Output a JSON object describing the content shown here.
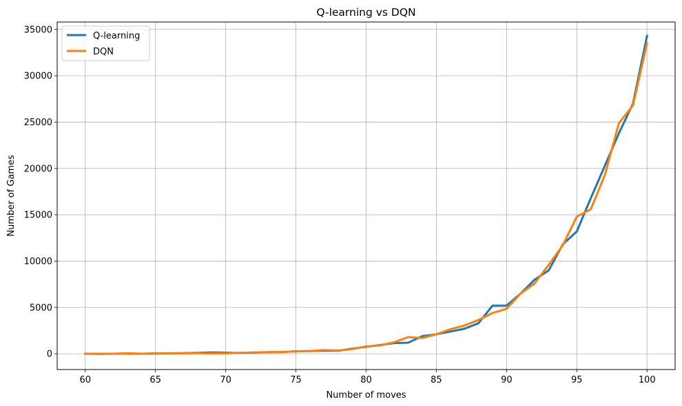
{
  "chart_data": {
    "type": "line",
    "title": "Q-learning vs DQN",
    "xlabel": "Number of moves",
    "ylabel": "Number of Games",
    "xlim": [
      58,
      102
    ],
    "ylim": [
      -1700,
      35800
    ],
    "xticks": [
      60,
      65,
      70,
      75,
      80,
      85,
      90,
      95,
      100
    ],
    "yticks": [
      0,
      5000,
      10000,
      15000,
      20000,
      25000,
      30000,
      35000
    ],
    "grid": true,
    "legend_position": "top-left",
    "x": [
      60,
      61,
      62,
      63,
      64,
      65,
      66,
      67,
      68,
      69,
      70,
      71,
      72,
      73,
      74,
      75,
      76,
      77,
      78,
      79,
      80,
      81,
      82,
      83,
      84,
      85,
      86,
      87,
      88,
      89,
      90,
      91,
      92,
      93,
      94,
      95,
      96,
      97,
      98,
      99,
      100
    ],
    "series": [
      {
        "name": "Q-learning",
        "color": "#1f77b4",
        "values": [
          10,
          -20,
          10,
          30,
          10,
          40,
          50,
          60,
          100,
          150,
          120,
          80,
          130,
          170,
          180,
          270,
          300,
          320,
          320,
          550,
          750,
          950,
          1150,
          1200,
          1900,
          2100,
          2400,
          2700,
          3300,
          5200,
          5200,
          6500,
          8000,
          9000,
          11800,
          13200,
          16800,
          20300,
          23800,
          27000,
          34300
        ]
      },
      {
        "name": "DQN",
        "color": "#ff7f0e",
        "values": [
          0,
          10,
          0,
          50,
          10,
          30,
          40,
          50,
          60,
          40,
          50,
          100,
          150,
          180,
          200,
          250,
          300,
          400,
          350,
          500,
          800,
          900,
          1250,
          1800,
          1700,
          2100,
          2650,
          3050,
          3650,
          4400,
          4850,
          6500,
          7600,
          9600,
          11700,
          14800,
          15600,
          19300,
          24900,
          26800,
          33500
        ]
      }
    ]
  }
}
